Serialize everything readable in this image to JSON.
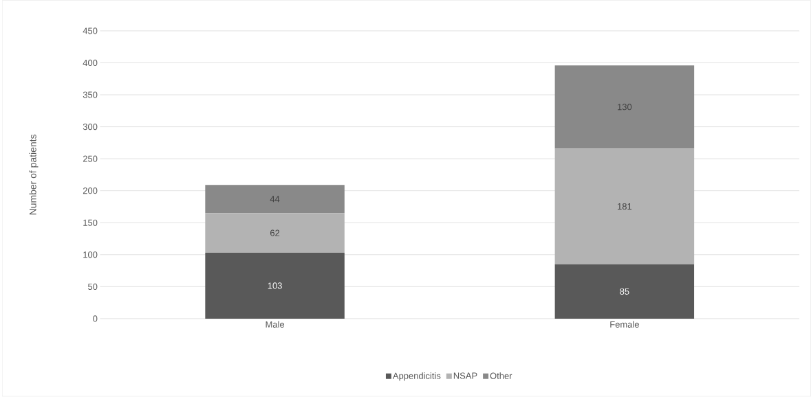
{
  "chart_data": {
    "type": "bar",
    "stacked": true,
    "ylabel": "Number of patients",
    "categories": [
      "Male",
      "Female"
    ],
    "series": [
      {
        "name": "Appendicitis",
        "color": "#595959",
        "values": [
          103,
          85
        ]
      },
      {
        "name": "NSAP",
        "color": "#b3b3b3",
        "values": [
          62,
          181
        ]
      },
      {
        "name": "Other",
        "color": "#898989",
        "values": [
          44,
          130
        ]
      }
    ],
    "ylim": [
      0,
      450
    ],
    "yticks": [
      0,
      50,
      100,
      150,
      200,
      250,
      300,
      350,
      400,
      450
    ],
    "grid": "y",
    "legend": "bottom",
    "data_labels": true
  }
}
